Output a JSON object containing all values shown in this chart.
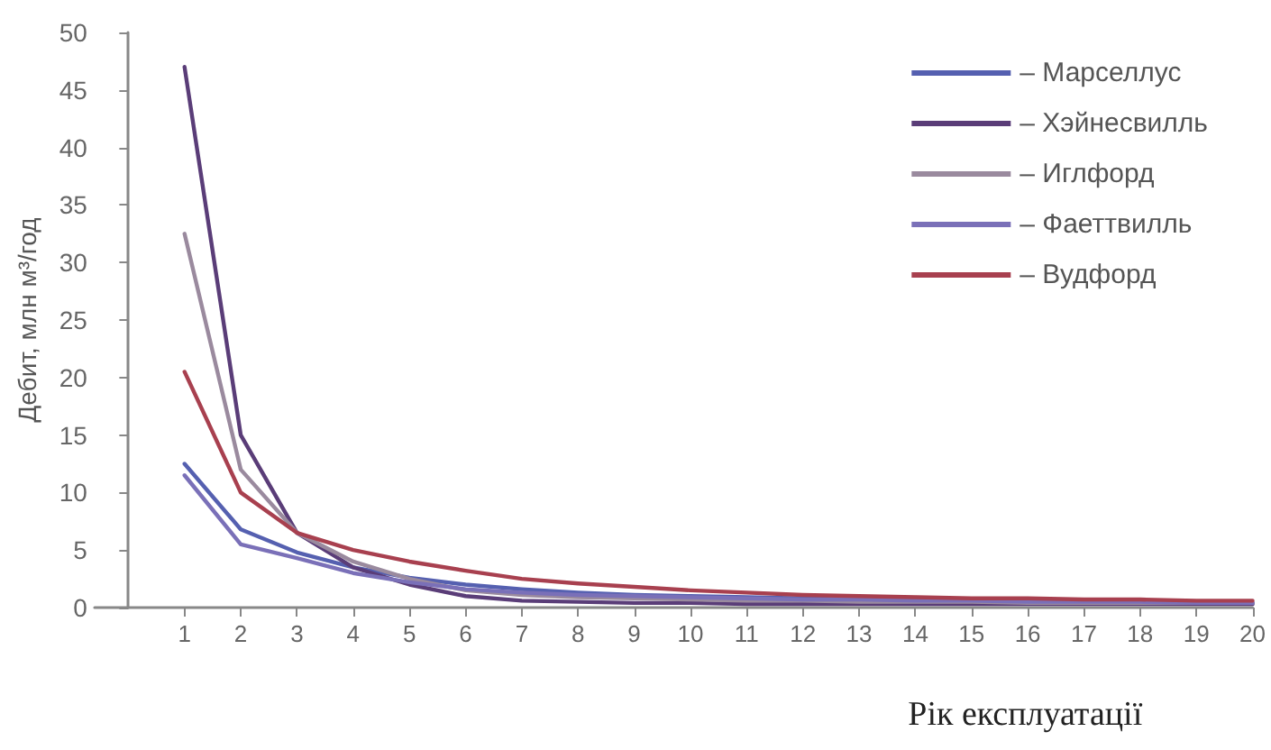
{
  "chart_data": {
    "type": "line",
    "ylabel": "Дебит, млн м³/год",
    "xlabel": "Рік експлуатації",
    "x": [
      1,
      2,
      3,
      4,
      5,
      6,
      7,
      8,
      9,
      10,
      11,
      12,
      13,
      14,
      15,
      16,
      17,
      18,
      19,
      20
    ],
    "xlim": [
      -0.6,
      20
    ],
    "xticks": [
      1,
      2,
      3,
      4,
      5,
      6,
      7,
      8,
      9,
      10,
      11,
      12,
      13,
      14,
      15,
      16,
      17,
      18,
      19,
      20
    ],
    "ylim": [
      0,
      50
    ],
    "yticks": [
      0,
      5,
      10,
      15,
      20,
      25,
      30,
      35,
      40,
      45,
      50
    ],
    "grid": false,
    "legend": "top right",
    "marker": "none",
    "line_style": "solid",
    "series": [
      {
        "name": "– Марселлус",
        "color": "#5560b0",
        "values": [
          12.5,
          6.8,
          4.8,
          3.5,
          2.6,
          2.0,
          1.6,
          1.3,
          1.1,
          1.0,
          0.9,
          0.8,
          0.7,
          0.7,
          0.6,
          0.6,
          0.5,
          0.5,
          0.5,
          0.4
        ]
      },
      {
        "name": "– Хэйнесвилль",
        "color": "#5a3d78",
        "values": [
          47,
          15,
          6.5,
          3.5,
          2.0,
          1.0,
          0.6,
          0.5,
          0.4,
          0.4,
          0.3,
          0.3,
          0.3,
          0.3,
          0.3,
          0.3,
          0.3,
          0.3,
          0.3,
          0.3
        ]
      },
      {
        "name": "– Иглфорд",
        "color": "#9a8a9e",
        "values": [
          32.5,
          12,
          6.5,
          4.0,
          2.5,
          1.5,
          1.1,
          0.9,
          0.8,
          0.7,
          0.6,
          0.6,
          0.5,
          0.5,
          0.5,
          0.4,
          0.4,
          0.4,
          0.4,
          0.4
        ]
      },
      {
        "name": "– Фаеттвилль",
        "color": "#7a70b8",
        "values": [
          11.5,
          5.5,
          4.3,
          3.0,
          2.2,
          1.6,
          1.3,
          1.1,
          1.0,
          0.9,
          0.8,
          0.7,
          0.7,
          0.6,
          0.6,
          0.5,
          0.5,
          0.5,
          0.4,
          0.4
        ]
      },
      {
        "name": "– Вудфорд",
        "color": "#a8404f",
        "values": [
          20.5,
          10,
          6.5,
          5.0,
          4.0,
          3.2,
          2.5,
          2.1,
          1.8,
          1.5,
          1.3,
          1.1,
          1.0,
          0.9,
          0.8,
          0.8,
          0.7,
          0.7,
          0.6,
          0.6
        ]
      }
    ]
  }
}
